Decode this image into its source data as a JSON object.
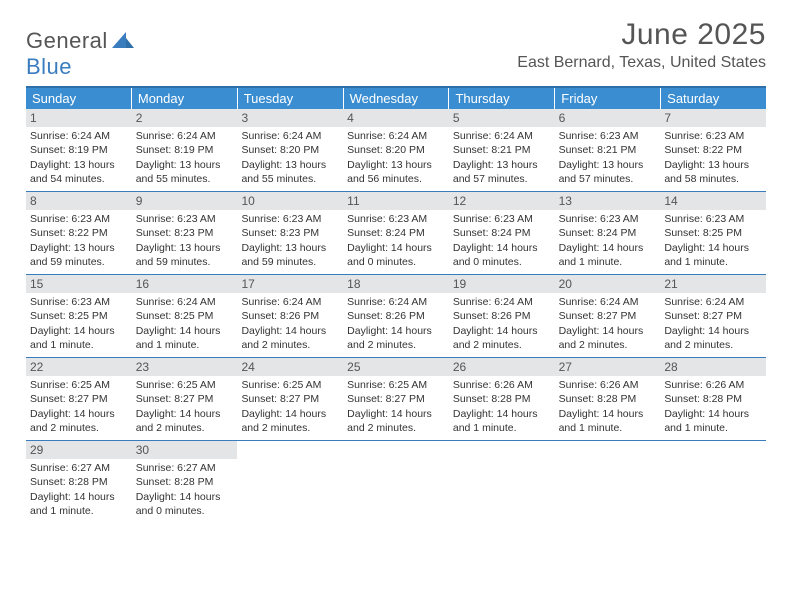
{
  "brand": {
    "part1": "General",
    "part2": "Blue"
  },
  "title": "June 2025",
  "location": "East Bernard, Texas, United States",
  "colors": {
    "header_bg": "#3a8dd0",
    "border": "#3a7dbf",
    "daynum_bg": "#e4e5e6",
    "text": "#333333",
    "muted": "#555555"
  },
  "weekdays": [
    "Sunday",
    "Monday",
    "Tuesday",
    "Wednesday",
    "Thursday",
    "Friday",
    "Saturday"
  ],
  "weeks": [
    [
      {
        "n": "1",
        "sr": "6:24 AM",
        "ss": "8:19 PM",
        "dl": "13 hours and 54 minutes."
      },
      {
        "n": "2",
        "sr": "6:24 AM",
        "ss": "8:19 PM",
        "dl": "13 hours and 55 minutes."
      },
      {
        "n": "3",
        "sr": "6:24 AM",
        "ss": "8:20 PM",
        "dl": "13 hours and 55 minutes."
      },
      {
        "n": "4",
        "sr": "6:24 AM",
        "ss": "8:20 PM",
        "dl": "13 hours and 56 minutes."
      },
      {
        "n": "5",
        "sr": "6:24 AM",
        "ss": "8:21 PM",
        "dl": "13 hours and 57 minutes."
      },
      {
        "n": "6",
        "sr": "6:23 AM",
        "ss": "8:21 PM",
        "dl": "13 hours and 57 minutes."
      },
      {
        "n": "7",
        "sr": "6:23 AM",
        "ss": "8:22 PM",
        "dl": "13 hours and 58 minutes."
      }
    ],
    [
      {
        "n": "8",
        "sr": "6:23 AM",
        "ss": "8:22 PM",
        "dl": "13 hours and 59 minutes."
      },
      {
        "n": "9",
        "sr": "6:23 AM",
        "ss": "8:23 PM",
        "dl": "13 hours and 59 minutes."
      },
      {
        "n": "10",
        "sr": "6:23 AM",
        "ss": "8:23 PM",
        "dl": "13 hours and 59 minutes."
      },
      {
        "n": "11",
        "sr": "6:23 AM",
        "ss": "8:24 PM",
        "dl": "14 hours and 0 minutes."
      },
      {
        "n": "12",
        "sr": "6:23 AM",
        "ss": "8:24 PM",
        "dl": "14 hours and 0 minutes."
      },
      {
        "n": "13",
        "sr": "6:23 AM",
        "ss": "8:24 PM",
        "dl": "14 hours and 1 minute."
      },
      {
        "n": "14",
        "sr": "6:23 AM",
        "ss": "8:25 PM",
        "dl": "14 hours and 1 minute."
      }
    ],
    [
      {
        "n": "15",
        "sr": "6:23 AM",
        "ss": "8:25 PM",
        "dl": "14 hours and 1 minute."
      },
      {
        "n": "16",
        "sr": "6:24 AM",
        "ss": "8:25 PM",
        "dl": "14 hours and 1 minute."
      },
      {
        "n": "17",
        "sr": "6:24 AM",
        "ss": "8:26 PM",
        "dl": "14 hours and 2 minutes."
      },
      {
        "n": "18",
        "sr": "6:24 AM",
        "ss": "8:26 PM",
        "dl": "14 hours and 2 minutes."
      },
      {
        "n": "19",
        "sr": "6:24 AM",
        "ss": "8:26 PM",
        "dl": "14 hours and 2 minutes."
      },
      {
        "n": "20",
        "sr": "6:24 AM",
        "ss": "8:27 PM",
        "dl": "14 hours and 2 minutes."
      },
      {
        "n": "21",
        "sr": "6:24 AM",
        "ss": "8:27 PM",
        "dl": "14 hours and 2 minutes."
      }
    ],
    [
      {
        "n": "22",
        "sr": "6:25 AM",
        "ss": "8:27 PM",
        "dl": "14 hours and 2 minutes."
      },
      {
        "n": "23",
        "sr": "6:25 AM",
        "ss": "8:27 PM",
        "dl": "14 hours and 2 minutes."
      },
      {
        "n": "24",
        "sr": "6:25 AM",
        "ss": "8:27 PM",
        "dl": "14 hours and 2 minutes."
      },
      {
        "n": "25",
        "sr": "6:25 AM",
        "ss": "8:27 PM",
        "dl": "14 hours and 2 minutes."
      },
      {
        "n": "26",
        "sr": "6:26 AM",
        "ss": "8:28 PM",
        "dl": "14 hours and 1 minute."
      },
      {
        "n": "27",
        "sr": "6:26 AM",
        "ss": "8:28 PM",
        "dl": "14 hours and 1 minute."
      },
      {
        "n": "28",
        "sr": "6:26 AM",
        "ss": "8:28 PM",
        "dl": "14 hours and 1 minute."
      }
    ],
    [
      {
        "n": "29",
        "sr": "6:27 AM",
        "ss": "8:28 PM",
        "dl": "14 hours and 1 minute."
      },
      {
        "n": "30",
        "sr": "6:27 AM",
        "ss": "8:28 PM",
        "dl": "14 hours and 0 minutes."
      },
      null,
      null,
      null,
      null,
      null
    ]
  ],
  "labels": {
    "sunrise": "Sunrise:",
    "sunset": "Sunset:",
    "daylight": "Daylight:"
  }
}
